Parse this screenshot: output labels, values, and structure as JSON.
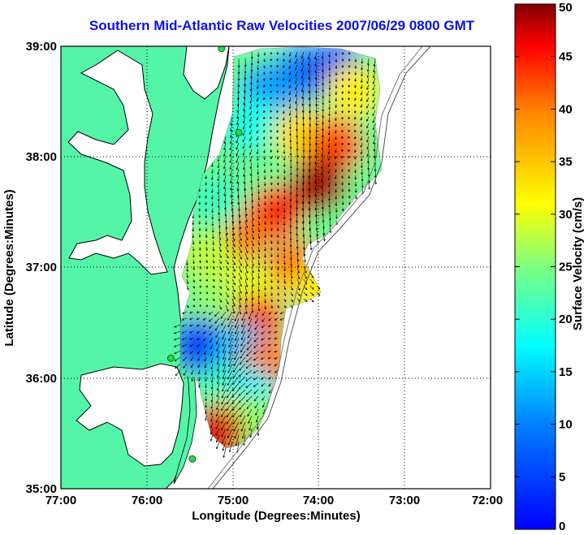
{
  "title": "Southern Mid-Atlantic Raw Velocities 2007/06/29 0800 GMT",
  "xlabel": "Longitude (Degrees:Minutes)",
  "ylabel": "Latitude (Degrees:Minutes)",
  "x_ticks": [
    "77:00",
    "76:00",
    "75:00",
    "74:00",
    "73:00",
    "72:00"
  ],
  "y_ticks": [
    "39:00",
    "38:00",
    "37:00",
    "36:00",
    "35:00"
  ],
  "colorbar": {
    "label": "Surface Velocity (cm/s)",
    "ticks": [
      "0",
      "5",
      "10",
      "15",
      "20",
      "25",
      "30",
      "35",
      "40",
      "45",
      "50"
    ],
    "range": [
      0,
      50
    ]
  },
  "map": {
    "lon_range": [
      -77,
      -72
    ],
    "lat_range": [
      35,
      39
    ],
    "land_color": "#55f5a8",
    "water_color": "#ffffff",
    "grid": true
  },
  "stations": [
    {
      "lon": -75.13,
      "lat": 38.98
    },
    {
      "lon": -74.93,
      "lat": 38.22
    },
    {
      "lon": -75.72,
      "lat": 36.18
    },
    {
      "lon": -75.47,
      "lat": 35.27
    }
  ],
  "chart_data": {
    "type": "heatmap",
    "title": "Southern Mid-Atlantic Raw Velocities 2007/06/29 0800 GMT",
    "xlabel": "Longitude (Degrees:Minutes)",
    "ylabel": "Latitude (Degrees:Minutes)",
    "xlim": [
      -77,
      -72
    ],
    "ylim": [
      35,
      39
    ],
    "colorbar_label": "Surface Velocity (cm/s)",
    "clim": [
      0,
      50
    ],
    "colormap": "jet",
    "field": [
      {
        "lon": -74.2,
        "lat": 38.75,
        "speed": 12
      },
      {
        "lon": -73.8,
        "lat": 38.8,
        "speed": 10
      },
      {
        "lon": -73.6,
        "lat": 38.6,
        "speed": 32
      },
      {
        "lon": -74.6,
        "lat": 38.6,
        "speed": 14
      },
      {
        "lon": -74.8,
        "lat": 38.3,
        "speed": 20
      },
      {
        "lon": -74.2,
        "lat": 38.2,
        "speed": 33
      },
      {
        "lon": -73.8,
        "lat": 38.1,
        "speed": 40
      },
      {
        "lon": -74.0,
        "lat": 37.75,
        "speed": 48
      },
      {
        "lon": -74.5,
        "lat": 37.5,
        "speed": 42
      },
      {
        "lon": -74.9,
        "lat": 37.3,
        "speed": 38
      },
      {
        "lon": -75.2,
        "lat": 37.6,
        "speed": 22
      },
      {
        "lon": -75.3,
        "lat": 37.1,
        "speed": 28
      },
      {
        "lon": -74.3,
        "lat": 37.0,
        "speed": 38
      },
      {
        "lon": -74.0,
        "lat": 36.8,
        "speed": 32
      },
      {
        "lon": -74.8,
        "lat": 36.8,
        "speed": 30
      },
      {
        "lon": -75.2,
        "lat": 36.6,
        "speed": 26
      },
      {
        "lon": -74.7,
        "lat": 36.5,
        "speed": 40
      },
      {
        "lon": -75.4,
        "lat": 36.3,
        "speed": 10
      },
      {
        "lon": -75.2,
        "lat": 36.2,
        "speed": 8
      },
      {
        "lon": -74.9,
        "lat": 36.25,
        "speed": 16
      },
      {
        "lon": -74.6,
        "lat": 36.1,
        "speed": 38
      },
      {
        "lon": -75.1,
        "lat": 35.9,
        "speed": 22
      },
      {
        "lon": -74.8,
        "lat": 35.85,
        "speed": 18
      },
      {
        "lon": -75.0,
        "lat": 35.6,
        "speed": 30
      },
      {
        "lon": -74.7,
        "lat": 35.6,
        "speed": 26
      },
      {
        "lon": -75.2,
        "lat": 35.5,
        "speed": 45
      }
    ]
  }
}
